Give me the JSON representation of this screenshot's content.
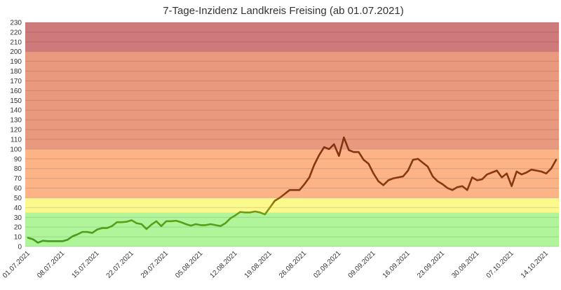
{
  "chart_data": {
    "type": "line",
    "title": "7-Tage-Inzidenz Landkreis Freising (ab 01.07.2021)",
    "xlabel": "",
    "ylabel": "",
    "ylim": [
      0,
      230
    ],
    "y_ticks": [
      0,
      10,
      20,
      30,
      40,
      50,
      60,
      70,
      80,
      90,
      100,
      110,
      120,
      130,
      140,
      150,
      160,
      170,
      180,
      190,
      200,
      210,
      220,
      230
    ],
    "x_tick_labels": [
      "01.07.2021",
      "08.07.2021",
      "15.07.2021",
      "22.07.2021",
      "29.07.2021",
      "05.08.2021",
      "12.08.2021",
      "19.08.2021",
      "26.08.2021",
      "02.09.2021",
      "09.09.2021",
      "16.09.2021",
      "23.09.2021",
      "30.09.2021",
      "07.10.2021",
      "14.10.2021"
    ],
    "grid": true,
    "legend": "none",
    "bands": [
      {
        "from": 0,
        "to": 35,
        "color": "#b0f59a"
      },
      {
        "from": 35,
        "to": 50,
        "color": "#fbf88c"
      },
      {
        "from": 50,
        "to": 100,
        "color": "#fcb386"
      },
      {
        "from": 100,
        "to": 200,
        "color": "#e99a7e"
      },
      {
        "from": 200,
        "to": 230,
        "color": "#cf7a7a"
      }
    ],
    "line_color_start": "#3f9a1c",
    "line_color_end": "#7a1e0c",
    "series": [
      {
        "values": [
          9,
          7.5,
          4,
          6,
          5.5,
          5.5,
          5.5,
          5.5,
          7,
          10.5,
          12.5,
          15,
          15,
          14,
          17.5,
          19,
          19,
          21,
          25,
          25,
          25.5,
          27,
          24,
          23,
          18,
          22.5,
          26,
          21,
          26,
          26,
          26.5,
          25,
          23,
          21.5,
          23,
          22,
          22,
          23,
          22,
          21,
          24,
          29,
          32,
          35.5,
          35,
          35,
          36,
          35,
          33,
          40,
          47,
          50,
          54,
          58,
          58,
          58,
          64,
          71,
          84,
          94,
          102,
          100,
          105,
          93,
          112,
          99,
          97,
          97,
          89,
          85,
          75,
          67,
          63,
          68,
          70,
          71,
          72,
          78,
          89,
          90,
          86,
          82,
          72,
          67,
          64,
          60,
          58,
          61,
          62,
          58,
          71,
          68,
          69,
          74,
          76,
          78,
          71,
          75,
          62,
          77,
          74,
          76,
          79,
          78,
          77,
          75,
          80,
          89
        ]
      }
    ]
  }
}
